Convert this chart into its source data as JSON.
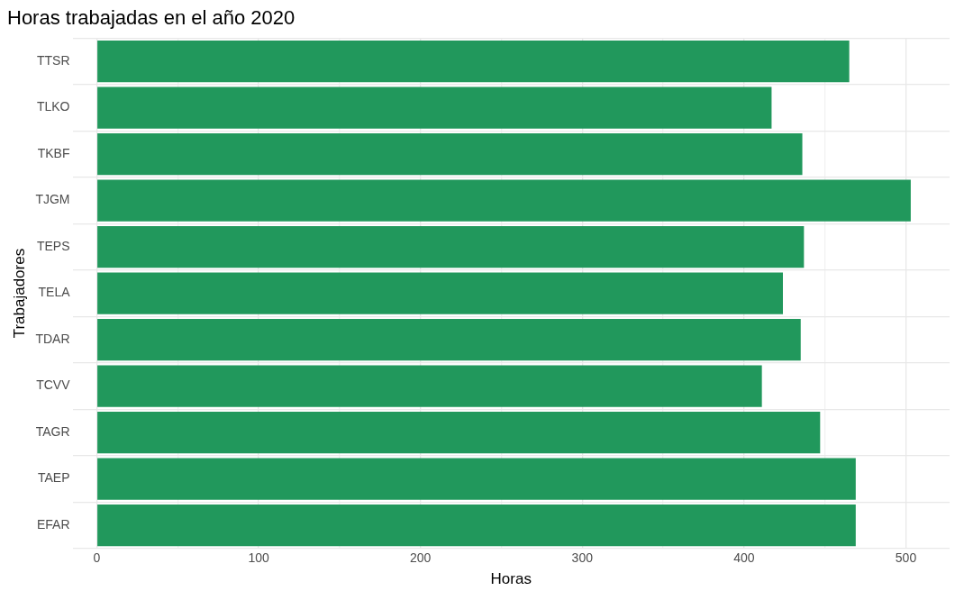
{
  "chart_data": {
    "type": "bar",
    "orientation": "horizontal",
    "title": "Horas trabajadas en el año 2020",
    "xlabel": "Horas",
    "ylabel": "Trabajadores",
    "categories": [
      "TTSR",
      "TLKO",
      "TKBF",
      "TJGM",
      "TEPS",
      "TELA",
      "TDAR",
      "TCVV",
      "TAGR",
      "TAEP",
      "EFAR"
    ],
    "values": [
      465,
      417,
      436,
      503,
      437,
      424,
      435,
      411,
      447,
      469,
      469
    ],
    "color": "#21985c",
    "xlim": [
      -15,
      527
    ],
    "xticks": [
      0,
      {
        "value": 50,
        "label": null
      },
      100,
      {
        "value": 150,
        "label": null
      },
      200,
      {
        "value": 250,
        "label": null
      },
      300,
      {
        "value": 350,
        "label": null
      },
      400,
      {
        "value": 450,
        "label": null
      },
      500
    ],
    "grid": true,
    "legend": false
  }
}
